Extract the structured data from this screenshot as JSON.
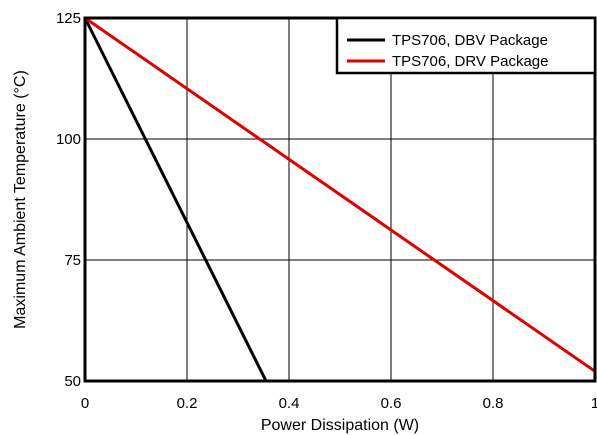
{
  "chart_data": {
    "type": "line",
    "title": "",
    "xlabel": "Power Dissipation (W)",
    "ylabel": "Maximum Ambient Temperature (°C)",
    "xlim": [
      0,
      1
    ],
    "ylim": [
      50,
      125
    ],
    "xticks": [
      0,
      0.2,
      0.4,
      0.6,
      0.8,
      1
    ],
    "xtick_labels": [
      "0",
      "0.2",
      "0.4",
      "0.6",
      "0.8",
      "1"
    ],
    "yticks": [
      50,
      75,
      100,
      125
    ],
    "ytick_labels": [
      "50",
      "75",
      "100",
      "125"
    ],
    "grid": true,
    "legend_position": "top-right",
    "series": [
      {
        "name": "TPS706, DBV Package",
        "color": "#000000",
        "x": [
          0,
          0.355
        ],
        "y": [
          125,
          50
        ]
      },
      {
        "name": "TPS706, DRV Package",
        "color": "#e00000",
        "x": [
          0,
          1
        ],
        "y": [
          125,
          52
        ]
      }
    ]
  }
}
